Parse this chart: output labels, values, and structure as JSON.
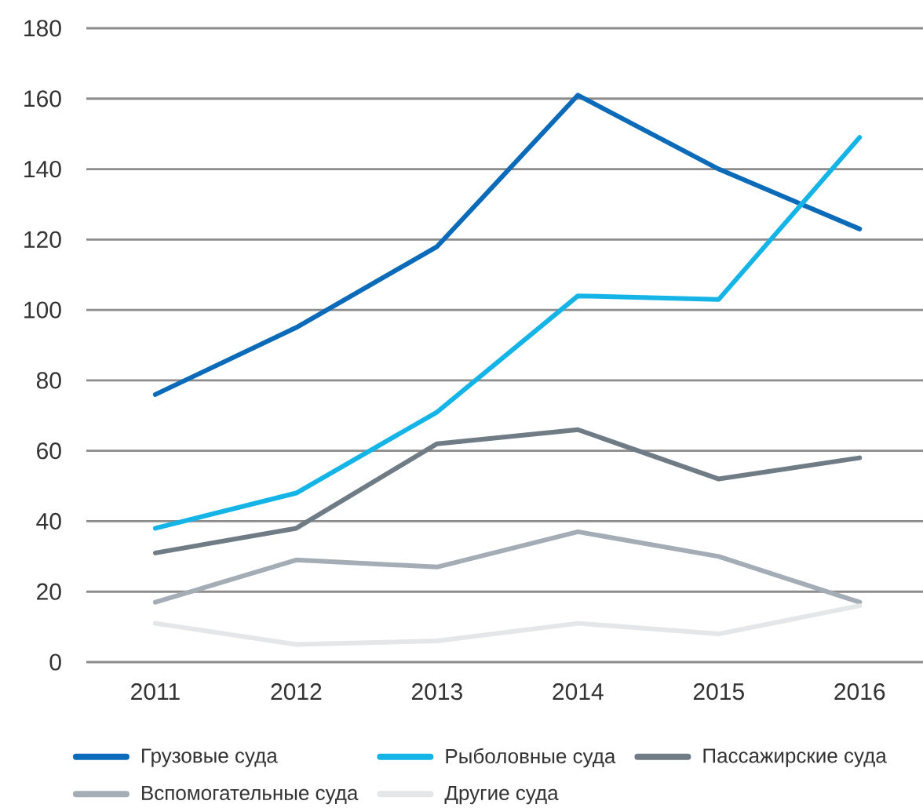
{
  "chart_data": {
    "type": "line",
    "categories": [
      "2011",
      "2012",
      "2013",
      "2014",
      "2015",
      "2016"
    ],
    "series": [
      {
        "name": "Грузовые суда",
        "color": "#0b6bb8",
        "values": [
          76,
          95,
          118,
          161,
          140,
          123
        ]
      },
      {
        "name": "Рыболовные суда",
        "color": "#14b4e6",
        "values": [
          38,
          48,
          71,
          104,
          103,
          149
        ]
      },
      {
        "name": "Пассажирские суда",
        "color": "#6f7b85",
        "values": [
          31,
          38,
          62,
          66,
          52,
          58
        ]
      },
      {
        "name": "Вспомогательные суда",
        "color": "#a4adb6",
        "values": [
          17,
          29,
          27,
          37,
          30,
          17
        ]
      },
      {
        "name": "Другие суда",
        "color": "#e4e6e8",
        "values": [
          11,
          5,
          6,
          11,
          8,
          16
        ]
      }
    ],
    "ylim": [
      0,
      180
    ],
    "yticks": [
      0,
      20,
      40,
      60,
      80,
      100,
      120,
      140,
      160,
      180
    ],
    "grid": "y",
    "legend": "bottom"
  }
}
